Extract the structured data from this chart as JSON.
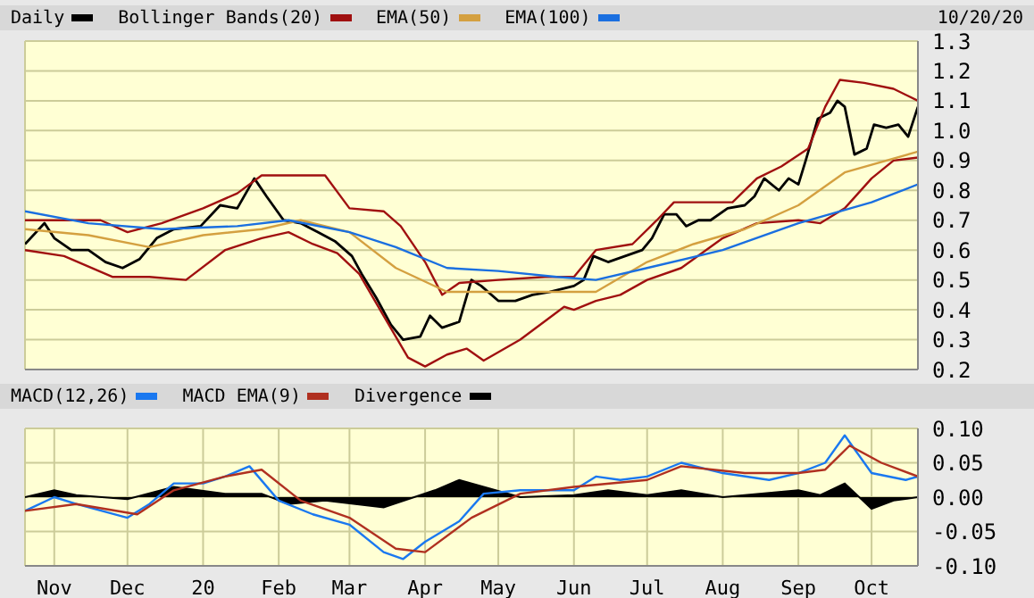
{
  "chart_data": [
    {
      "type": "line",
      "annotations": [
        "10/20/20"
      ],
      "legend": "top",
      "grid": true,
      "tick_labels": "y",
      "xlim": [
        "2019-10-20",
        "2020-10-20"
      ],
      "ylim": [
        0.2,
        1.3
      ],
      "yticks": [
        {
          "value": 0.2,
          "label": "0.2"
        },
        {
          "value": 0.3,
          "label": "0.3"
        },
        {
          "value": 0.4,
          "label": "0.4"
        },
        {
          "value": 0.5,
          "label": "0.5"
        },
        {
          "value": 0.6,
          "label": "0.6"
        },
        {
          "value": 0.7,
          "label": "0.7"
        },
        {
          "value": 0.8,
          "label": "0.8"
        },
        {
          "value": 0.9,
          "label": "0.9"
        },
        {
          "value": 1.0,
          "label": "1.0"
        },
        {
          "value": 1.1,
          "label": "1.1"
        },
        {
          "value": 1.2,
          "label": "1.2"
        },
        {
          "value": 1.3,
          "label": "1.3"
        }
      ],
      "xticks": [
        {
          "value": "2019-11-01",
          "label": null
        },
        {
          "value": "2019-12-01",
          "label": null
        },
        {
          "value": "2020-01-01",
          "label": null
        },
        {
          "value": "2020-02-01",
          "label": null
        },
        {
          "value": "2020-03-01",
          "label": null
        },
        {
          "value": "2020-04-01",
          "label": null
        },
        {
          "value": "2020-05-01",
          "label": null
        },
        {
          "value": "2020-06-01",
          "label": null
        },
        {
          "value": "2020-07-01",
          "label": null
        },
        {
          "value": "2020-08-01",
          "label": null
        },
        {
          "value": "2020-09-01",
          "label": null
        },
        {
          "value": "2020-10-01",
          "label": null
        }
      ],
      "series": [
        {
          "name": "Daily",
          "color": "#000000",
          "x": [
            "2019-10-20",
            "2019-10-28",
            "2019-11-01",
            "2019-11-08",
            "2019-11-15",
            "2019-11-22",
            "2019-11-29",
            "2019-12-06",
            "2019-12-13",
            "2019-12-20",
            "2019-12-31",
            "2020-01-08",
            "2020-01-15",
            "2020-01-22",
            "2020-01-27",
            "2020-02-03",
            "2020-02-10",
            "2020-02-17",
            "2020-02-24",
            "2020-03-02",
            "2020-03-06",
            "2020-03-12",
            "2020-03-18",
            "2020-03-23",
            "2020-03-30",
            "2020-04-03",
            "2020-04-08",
            "2020-04-15",
            "2020-04-20",
            "2020-04-24",
            "2020-05-01",
            "2020-05-08",
            "2020-05-15",
            "2020-05-22",
            "2020-06-01",
            "2020-06-05",
            "2020-06-09",
            "2020-06-15",
            "2020-06-22",
            "2020-06-29",
            "2020-07-03",
            "2020-07-08",
            "2020-07-13",
            "2020-07-17",
            "2020-07-22",
            "2020-07-27",
            "2020-08-03",
            "2020-08-10",
            "2020-08-14",
            "2020-08-18",
            "2020-08-24",
            "2020-08-28",
            "2020-09-01",
            "2020-09-04",
            "2020-09-09",
            "2020-09-14",
            "2020-09-17",
            "2020-09-20",
            "2020-09-24",
            "2020-09-29",
            "2020-10-02",
            "2020-10-07",
            "2020-10-12",
            "2020-10-16",
            "2020-10-20"
          ],
          "values": [
            0.62,
            0.69,
            0.64,
            0.6,
            0.6,
            0.56,
            0.54,
            0.57,
            0.64,
            0.67,
            0.68,
            0.75,
            0.74,
            0.84,
            0.78,
            0.7,
            0.69,
            0.66,
            0.63,
            0.58,
            0.52,
            0.44,
            0.35,
            0.3,
            0.31,
            0.38,
            0.34,
            0.36,
            0.5,
            0.48,
            0.43,
            0.43,
            0.45,
            0.46,
            0.48,
            0.5,
            0.58,
            0.56,
            0.58,
            0.6,
            0.64,
            0.72,
            0.72,
            0.68,
            0.7,
            0.7,
            0.74,
            0.75,
            0.78,
            0.84,
            0.8,
            0.84,
            0.82,
            0.9,
            1.04,
            1.06,
            1.1,
            1.08,
            0.92,
            0.94,
            1.02,
            1.01,
            1.02,
            0.98,
            1.08
          ]
        },
        {
          "name": "Bollinger Bands(20)",
          "color": "#a01010",
          "x": [
            "2019-10-20",
            "2019-11-01",
            "2019-11-20",
            "2019-12-01",
            "2019-12-15",
            "2020-01-01",
            "2020-01-15",
            "2020-01-25",
            "2020-02-05",
            "2020-02-20",
            "2020-03-01",
            "2020-03-15",
            "2020-03-22",
            "2020-04-01",
            "2020-04-08",
            "2020-04-15",
            "2020-05-01",
            "2020-05-20",
            "2020-06-01",
            "2020-06-10",
            "2020-06-25",
            "2020-07-05",
            "2020-07-12",
            "2020-07-25",
            "2020-08-05",
            "2020-08-15",
            "2020-08-25",
            "2020-09-05",
            "2020-09-12",
            "2020-09-18",
            "2020-09-28",
            "2020-10-10",
            "2020-10-20"
          ],
          "values": [
            0.7,
            0.7,
            0.7,
            0.66,
            0.69,
            0.74,
            0.79,
            0.85,
            0.85,
            0.85,
            0.74,
            0.73,
            0.68,
            0.56,
            0.45,
            0.49,
            0.5,
            0.51,
            0.51,
            0.6,
            0.62,
            0.7,
            0.76,
            0.76,
            0.76,
            0.84,
            0.88,
            0.94,
            1.08,
            1.17,
            1.16,
            1.14,
            1.1
          ]
        },
        {
          "color": "#a01010",
          "x": [
            "2019-10-20",
            "2019-11-05",
            "2019-11-25",
            "2019-12-10",
            "2019-12-25",
            "2020-01-10",
            "2020-01-25",
            "2020-02-05",
            "2020-02-15",
            "2020-02-25",
            "2020-03-05",
            "2020-03-15",
            "2020-03-25",
            "2020-04-01",
            "2020-04-10",
            "2020-04-18",
            "2020-04-25",
            "2020-05-10",
            "2020-05-28",
            "2020-06-01",
            "2020-06-10",
            "2020-06-20",
            "2020-07-01",
            "2020-07-15",
            "2020-08-01",
            "2020-08-15",
            "2020-09-01",
            "2020-09-10",
            "2020-09-20",
            "2020-10-01",
            "2020-10-10",
            "2020-10-20"
          ],
          "values": [
            0.6,
            0.58,
            0.51,
            0.51,
            0.5,
            0.6,
            0.64,
            0.66,
            0.62,
            0.59,
            0.52,
            0.38,
            0.24,
            0.21,
            0.25,
            0.27,
            0.23,
            0.3,
            0.41,
            0.4,
            0.43,
            0.45,
            0.5,
            0.54,
            0.64,
            0.69,
            0.7,
            0.69,
            0.74,
            0.84,
            0.9,
            0.91
          ]
        },
        {
          "name": "EMA(50)",
          "color": "#d4a040",
          "x": [
            "2019-10-20",
            "2019-11-15",
            "2019-12-10",
            "2020-01-01",
            "2020-01-25",
            "2020-02-10",
            "2020-03-01",
            "2020-03-20",
            "2020-04-10",
            "2020-05-01",
            "2020-05-25",
            "2020-06-10",
            "2020-07-01",
            "2020-07-20",
            "2020-08-10",
            "2020-09-01",
            "2020-09-20",
            "2020-10-20"
          ],
          "values": [
            0.67,
            0.65,
            0.61,
            0.65,
            0.67,
            0.7,
            0.66,
            0.54,
            0.46,
            0.46,
            0.46,
            0.46,
            0.56,
            0.62,
            0.67,
            0.75,
            0.86,
            0.93
          ]
        },
        {
          "name": "EMA(100)",
          "color": "#1a6fe0",
          "x": [
            "2019-10-20",
            "2019-11-15",
            "2019-12-15",
            "2020-01-15",
            "2020-02-05",
            "2020-03-01",
            "2020-03-20",
            "2020-04-10",
            "2020-05-01",
            "2020-05-25",
            "2020-06-10",
            "2020-07-01",
            "2020-08-01",
            "2020-09-01",
            "2020-10-01",
            "2020-10-20"
          ],
          "values": [
            0.73,
            0.69,
            0.67,
            0.68,
            0.7,
            0.66,
            0.61,
            0.54,
            0.53,
            0.51,
            0.5,
            0.54,
            0.6,
            0.69,
            0.76,
            0.82
          ]
        }
      ]
    },
    {
      "type": "line",
      "legend": "top",
      "grid": true,
      "xlim": [
        "2019-10-20",
        "2020-10-20"
      ],
      "ylim": [
        -0.1,
        0.1
      ],
      "yticks": [
        {
          "value": -0.1,
          "label": "-0.10"
        },
        {
          "value": -0.05,
          "label": "-0.05"
        },
        {
          "value": 0,
          "label": "0.00"
        },
        {
          "value": 0.05,
          "label": "0.05"
        },
        {
          "value": 0.1,
          "label": "0.10"
        }
      ],
      "xticks": [
        {
          "value": "2019-11-01",
          "label": "Nov"
        },
        {
          "value": "2019-12-01",
          "label": "Dec"
        },
        {
          "value": "2020-01-01",
          "label": "20"
        },
        {
          "value": "2020-02-01",
          "label": "Feb"
        },
        {
          "value": "2020-03-01",
          "label": "Mar"
        },
        {
          "value": "2020-04-01",
          "label": "Apr"
        },
        {
          "value": "2020-05-01",
          "label": "May"
        },
        {
          "value": "2020-06-01",
          "label": "Jun"
        },
        {
          "value": "2020-07-01",
          "label": "Jul"
        },
        {
          "value": "2020-08-01",
          "label": "Aug"
        },
        {
          "value": "2020-09-01",
          "label": "Sep"
        },
        {
          "value": "2020-10-01",
          "label": "Oct"
        }
      ],
      "series": [
        {
          "name": "MACD(12,26)",
          "color": "#1a78f0",
          "x": [
            "2019-10-20",
            "2019-11-01",
            "2019-11-10",
            "2019-12-01",
            "2019-12-10",
            "2019-12-20",
            "2020-01-01",
            "2020-01-10",
            "2020-01-20",
            "2020-02-01",
            "2020-02-15",
            "2020-03-01",
            "2020-03-15",
            "2020-03-23",
            "2020-04-01",
            "2020-04-15",
            "2020-04-25",
            "2020-05-10",
            "2020-06-01",
            "2020-06-10",
            "2020-06-20",
            "2020-07-01",
            "2020-07-15",
            "2020-08-01",
            "2020-08-20",
            "2020-09-01",
            "2020-09-12",
            "2020-09-20",
            "2020-09-25",
            "2020-10-01",
            "2020-10-15",
            "2020-10-20"
          ],
          "values": [
            -0.02,
            0,
            -0.01,
            -0.03,
            -0.01,
            0.02,
            0.02,
            0.03,
            0.045,
            -0.005,
            -0.025,
            -0.04,
            -0.08,
            -0.09,
            -0.065,
            -0.035,
            0.005,
            0.01,
            0.01,
            0.03,
            0.025,
            0.03,
            0.05,
            0.035,
            0.025,
            0.035,
            0.05,
            0.09,
            0.065,
            0.035,
            0.025,
            0.03
          ]
        },
        {
          "name": "MACD EMA(9)",
          "color": "#b03020",
          "x": [
            "2019-10-20",
            "2019-11-10",
            "2019-12-05",
            "2019-12-20",
            "2020-01-10",
            "2020-01-25",
            "2020-02-10",
            "2020-03-01",
            "2020-03-20",
            "2020-04-01",
            "2020-04-20",
            "2020-05-10",
            "2020-06-01",
            "2020-07-01",
            "2020-07-15",
            "2020-08-10",
            "2020-09-01",
            "2020-09-12",
            "2020-09-22",
            "2020-10-05",
            "2020-10-20"
          ],
          "values": [
            -0.02,
            -0.01,
            -0.025,
            0.01,
            0.03,
            0.04,
            -0.005,
            -0.03,
            -0.075,
            -0.08,
            -0.03,
            0.005,
            0.015,
            0.025,
            0.045,
            0.035,
            0.035,
            0.04,
            0.075,
            0.05,
            0.03
          ]
        },
        {
          "name": "Divergence",
          "type": "area",
          "color": "#000000",
          "x": [
            "2019-10-20",
            "2019-11-01",
            "2019-11-10",
            "2019-12-01",
            "2019-12-20",
            "2020-01-10",
            "2020-01-25",
            "2020-02-05",
            "2020-02-20",
            "2020-03-15",
            "2020-04-05",
            "2020-04-15",
            "2020-04-25",
            "2020-05-10",
            "2020-06-01",
            "2020-06-15",
            "2020-07-01",
            "2020-07-15",
            "2020-08-01",
            "2020-09-01",
            "2020-09-10",
            "2020-09-20",
            "2020-10-01",
            "2020-10-10",
            "2020-10-20"
          ],
          "values": [
            0,
            0.01,
            0.003,
            -0.003,
            0.015,
            0.005,
            0.005,
            -0.01,
            -0.005,
            -0.015,
            0.01,
            0.025,
            0.015,
            0,
            0.003,
            0.01,
            0.003,
            0.01,
            0,
            0.01,
            0.003,
            0.02,
            -0.017,
            -0.005,
            0
          ]
        }
      ]
    }
  ]
}
